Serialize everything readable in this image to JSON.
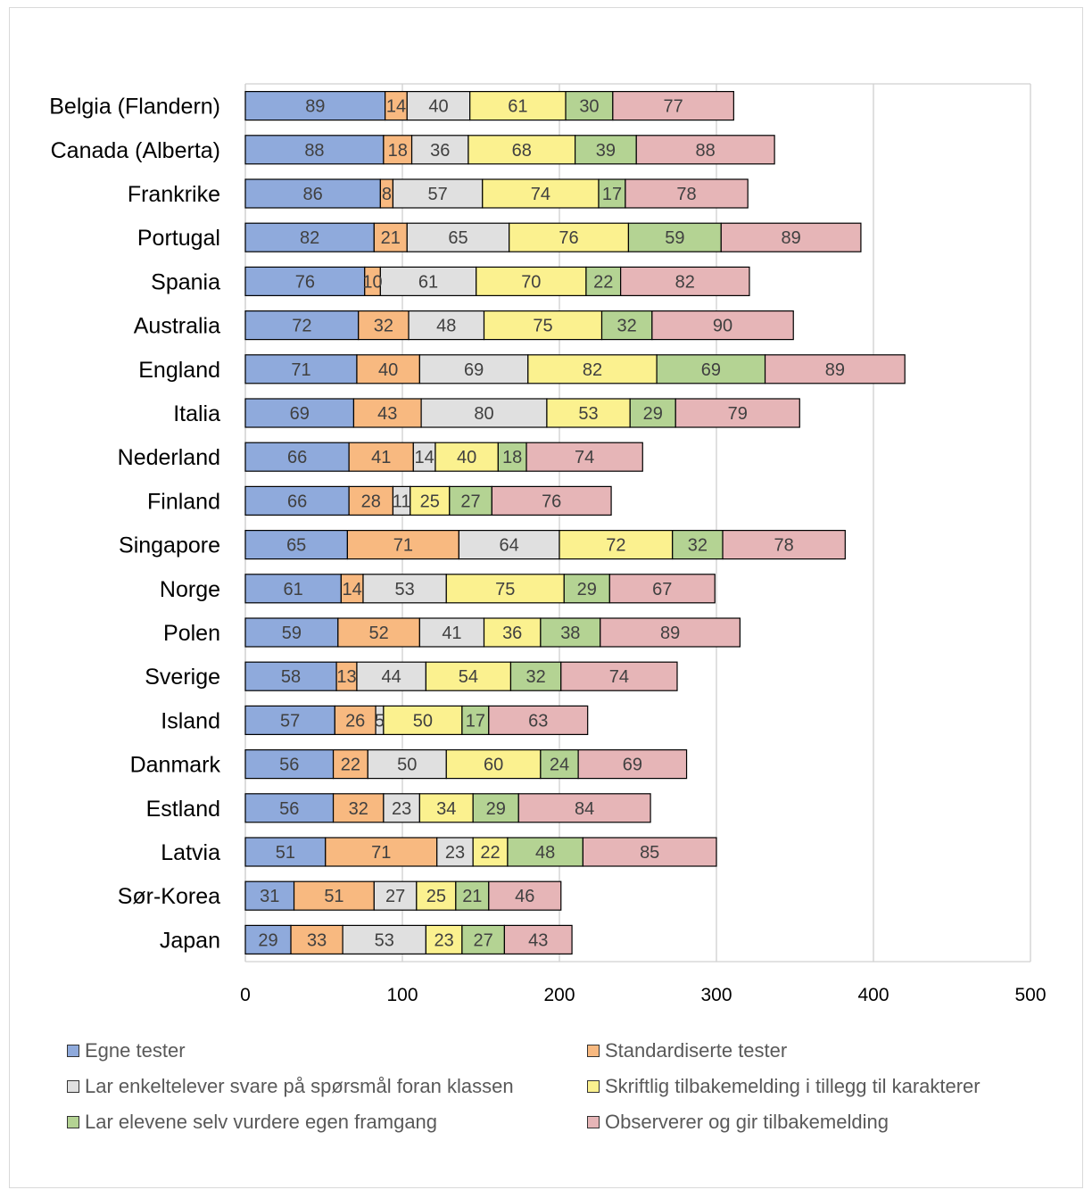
{
  "chart_data": {
    "type": "bar",
    "orientation": "horizontal",
    "stacked": true,
    "categories": [
      "Belgia (Flandern)",
      "Canada (Alberta)",
      "Frankrike",
      "Portugal",
      "Spania",
      "Australia",
      "England",
      "Italia",
      "Nederland",
      "Finland",
      "Singapore",
      "Norge",
      "Polen",
      "Sverige",
      "Island",
      "Danmark",
      "Estland",
      "Latvia",
      "Sør-Korea",
      "Japan"
    ],
    "series": [
      {
        "name": "Egne tester",
        "color": "#8faadc",
        "values": [
          89,
          88,
          86,
          82,
          76,
          72,
          71,
          69,
          66,
          66,
          65,
          61,
          59,
          58,
          57,
          56,
          56,
          51,
          31,
          29
        ]
      },
      {
        "name": "Standardiserte tester",
        "color": "#f8b980",
        "values": [
          14,
          18,
          8,
          21,
          10,
          32,
          40,
          43,
          41,
          28,
          71,
          14,
          52,
          13,
          26,
          22,
          32,
          71,
          51,
          33
        ]
      },
      {
        "name": "Lar enkeltelever svare på spørsmål foran klassen",
        "color": "#e0e0e0",
        "values": [
          40,
          36,
          57,
          65,
          61,
          48,
          69,
          80,
          14,
          11,
          64,
          53,
          41,
          44,
          5,
          50,
          23,
          23,
          27,
          53
        ]
      },
      {
        "name": "Skriftlig tilbakemelding i tillegg til karakterer",
        "color": "#fbf18f",
        "values": [
          61,
          68,
          74,
          76,
          70,
          75,
          82,
          53,
          40,
          25,
          72,
          75,
          36,
          54,
          50,
          60,
          34,
          22,
          25,
          23
        ]
      },
      {
        "name": "Lar elevene selv vurdere egen framgang",
        "color": "#b4d393",
        "values": [
          30,
          39,
          17,
          59,
          22,
          32,
          69,
          29,
          18,
          27,
          32,
          29,
          38,
          32,
          17,
          24,
          29,
          48,
          21,
          27
        ]
      },
      {
        "name": "Observerer og gir tilbakemelding",
        "color": "#e6b5b7",
        "values": [
          77,
          88,
          78,
          89,
          82,
          90,
          89,
          79,
          74,
          76,
          78,
          67,
          89,
          74,
          63,
          69,
          84,
          85,
          46,
          43
        ]
      }
    ],
    "xlim": [
      0,
      500
    ],
    "xticks": [
      "0",
      "100",
      "200",
      "300",
      "400",
      "500"
    ],
    "grid": true,
    "legend_position": "bottom",
    "title": "",
    "xlabel": "",
    "ylabel": ""
  }
}
